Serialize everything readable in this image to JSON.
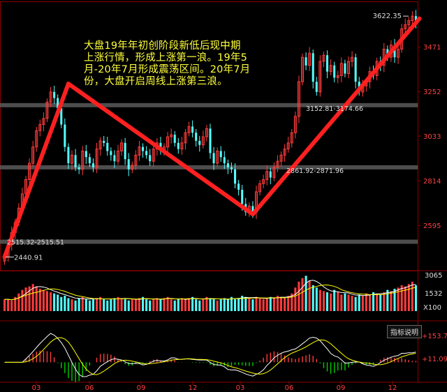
{
  "chart_data": {
    "type": "candlestick",
    "annotation": [
      "大盘19年年初创阶段新低后现中期",
      "上涨行情，形成上涨第一浪。19年5",
      "月-20年7月形成震荡区间。20年7月",
      "份，大盘开启周线上涨第三浪。"
    ],
    "price_axis": {
      "ticks": [
        3471,
        3252,
        3033,
        2814,
        2595
      ],
      "ylim": [
        2380,
        3660
      ]
    },
    "x_ticks": [
      "03",
      "06",
      "09",
      "12",
      "03",
      "06",
      "09",
      "12"
    ],
    "price_labels": {
      "high": "3622.35",
      "low": "2440.91",
      "low_zone": "2515.32-2515.51",
      "mid_zone": "2861.92-2871.96",
      "high_zone": "3152.81-3174.66"
    },
    "zones": [
      3185,
      2880,
      2515
    ],
    "trend_lines": [
      {
        "from": [
          0,
          2440
        ],
        "to": [
          18,
          3290
        ]
      },
      {
        "from": [
          18,
          3290
        ],
        "to": [
          70,
          2650
        ]
      },
      {
        "from": [
          70,
          2650
        ],
        "to": [
          117,
          3610
        ]
      }
    ],
    "closes": [
      2440,
      2500,
      2560,
      2610,
      2680,
      2750,
      2820,
      2900,
      2980,
      3060,
      3090,
      3120,
      3200,
      3250,
      3220,
      3170,
      3090,
      2980,
      2900,
      2940,
      2880,
      2870,
      2960,
      2930,
      2900,
      2880,
      2970,
      3010,
      3000,
      2960,
      2940,
      2910,
      2960,
      3000,
      2920,
      2870,
      2890,
      2940,
      2980,
      2960,
      2940,
      2910,
      2970,
      3000,
      2960,
      2980,
      3030,
      3040,
      3000,
      2970,
      3000,
      3050,
      3080,
      3050,
      3010,
      2990,
      3030,
      3070,
      2950,
      2900,
      2960,
      2930,
      2900,
      2880,
      2870,
      2800,
      2770,
      2700,
      2660,
      2690,
      2660,
      2760,
      2800,
      2820,
      2860,
      2830,
      2880,
      2910,
      2940,
      2970,
      3000,
      3050,
      3130,
      3300,
      3420,
      3380,
      3440,
      3300,
      3250,
      3400,
      3430,
      3350,
      3380,
      3320,
      3330,
      3390,
      3340,
      3400,
      3420,
      3300,
      3250,
      3280,
      3300,
      3350,
      3330,
      3400,
      3380,
      3460,
      3420,
      3480,
      3420,
      3460,
      3560,
      3580,
      3600,
      3622,
      3580
    ],
    "volume_axis": {
      "ticks": [
        "3065",
        "1532",
        "X100"
      ]
    },
    "volumes": [
      1,
      1,
      0.9,
      1.2,
      1.5,
      1.8,
      2,
      2.1,
      2.3,
      2.1,
      1.9,
      1.8,
      1.7,
      1.6,
      1.5,
      1.4,
      1.2,
      1.3,
      1.1,
      1,
      0.9,
      1.1,
      1.2,
      1,
      0.9,
      1,
      1.1,
      1.2,
      1,
      0.9,
      1,
      1.1,
      1.2,
      1.1,
      1,
      0.9,
      1,
      1,
      1.1,
      1.2,
      1,
      0.9,
      1,
      1.1,
      1,
      1.1,
      1.2,
      1,
      0.9,
      1,
      1.1,
      1,
      1.1,
      1.2,
      1,
      0.9,
      1,
      1.2,
      1.1,
      1,
      0.9,
      1,
      1.1,
      1,
      1.2,
      1,
      1.1,
      1.3,
      1.2,
      1.1,
      1,
      1.2,
      1.1,
      1,
      1.1,
      1.2,
      1.1,
      1.3,
      1.2,
      1.1,
      1.3,
      1.5,
      2,
      2.5,
      2.8,
      3,
      2.6,
      2.2,
      2,
      1.8,
      1.7,
      1.6,
      1.5,
      1.8,
      1.6,
      1.4,
      1.5,
      1.4,
      1.3,
      1.2,
      1.4,
      1.3,
      1.5,
      1.4,
      1.6,
      1.5,
      1.4,
      1.6,
      1.8,
      1.7,
      1.9,
      2,
      2.2,
      2.1,
      2.3,
      2.5,
      2.2
    ],
    "indicator": {
      "label": "指标说明",
      "ticks": [
        "+153.7",
        "+11.09"
      ]
    }
  },
  "colors": {
    "up": "#ff3c3c",
    "down": "#54ffff",
    "trend": "#ff2020",
    "ma_white": "#ffffff",
    "ma_yellow": "#ffff00",
    "macd_green": "#00cc00"
  }
}
